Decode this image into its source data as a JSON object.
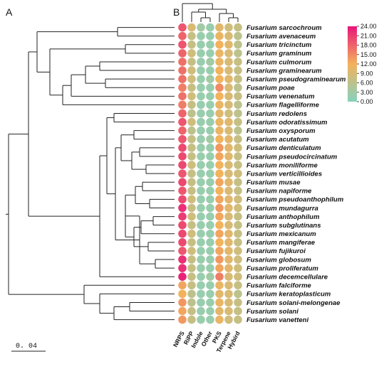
{
  "panels": {
    "a": "A",
    "b": "B"
  },
  "scale_bar_label": "0. 04",
  "colors": {
    "low": "#86d2bd",
    "mid": "#f3b25c",
    "high": "#e8157a"
  },
  "chart_data": {
    "type": "heatmap",
    "columns": [
      "NRPS",
      "RiPP",
      "Indole",
      "Other",
      "PKS",
      "Terpene",
      "Hybird"
    ],
    "rows": [
      "Fusarium sarcochroum",
      "Fusarium avenaceum",
      "Fusarium tricinctum",
      "Fusarium graminum",
      "Fusarium culmorum",
      "Fusarium graminearum",
      "Fusarium pseudograminearum",
      "Fusarium poae",
      "Fusarium venenatum",
      "Fusarium flagelliforme",
      "Fusarium redolens",
      "Fusarium odoratissimum",
      "Fusarium oxysporum",
      "Fusarium acutatum",
      "Fusarium denticulatum",
      "Fusarium pseudocircinatum",
      "Fusarium moniliforme",
      "Fusarium verticillioides",
      "Fusarium musae",
      "Fusarium napiforme",
      "Fusarium pseudoanthophilum",
      "Fusarium mundagurra",
      "Fusarium anthophilum",
      "Fusarium subglutinans",
      "Fusarium mexicanum",
      "Fusarium mangiferae",
      "Fusarium fujikuroi",
      "Fusarium globosum",
      "Fusarium proliferatum",
      "Fusarium decemcellulare",
      "Fusarium falciforme",
      "Fusarium keratoplasticum",
      "Fusarium solani-melongenae",
      "Fusarium solani",
      "Fusarium vanetteni"
    ],
    "values": [
      [
        19,
        9,
        3,
        2,
        10,
        8,
        7
      ],
      [
        18,
        7,
        2,
        2,
        11,
        9,
        6
      ],
      [
        19,
        7,
        2,
        2,
        12,
        10,
        6
      ],
      [
        18,
        8,
        2,
        2,
        11,
        9,
        6
      ],
      [
        17,
        7,
        2,
        3,
        11,
        9,
        7
      ],
      [
        17,
        8,
        2,
        2,
        12,
        9,
        7
      ],
      [
        17,
        8,
        2,
        3,
        12,
        10,
        7
      ],
      [
        16,
        7,
        2,
        2,
        15,
        9,
        6
      ],
      [
        17,
        8,
        2,
        2,
        12,
        9,
        7
      ],
      [
        16,
        7,
        2,
        2,
        11,
        9,
        6
      ],
      [
        18,
        6,
        2,
        2,
        10,
        8,
        6
      ],
      [
        19,
        8,
        2,
        2,
        11,
        10,
        7
      ],
      [
        18,
        6,
        2,
        2,
        11,
        9,
        6
      ],
      [
        19,
        7,
        2,
        3,
        12,
        10,
        7
      ],
      [
        20,
        7,
        2,
        2,
        14,
        10,
        8
      ],
      [
        20,
        7,
        2,
        2,
        13,
        10,
        7
      ],
      [
        20,
        8,
        2,
        2,
        12,
        9,
        7
      ],
      [
        19,
        7,
        2,
        2,
        12,
        9,
        8
      ],
      [
        20,
        7,
        2,
        2,
        13,
        10,
        7
      ],
      [
        19,
        7,
        2,
        2,
        12,
        9,
        7
      ],
      [
        20,
        8,
        2,
        2,
        13,
        10,
        8
      ],
      [
        22,
        7,
        2,
        2,
        14,
        10,
        8
      ],
      [
        21,
        8,
        2,
        2,
        13,
        9,
        7
      ],
      [
        20,
        7,
        2,
        2,
        12,
        9,
        7
      ],
      [
        20,
        8,
        2,
        2,
        13,
        10,
        7
      ],
      [
        20,
        7,
        2,
        2,
        12,
        10,
        7
      ],
      [
        19,
        8,
        2,
        2,
        13,
        10,
        8
      ],
      [
        22,
        7,
        2,
        2,
        14,
        10,
        8
      ],
      [
        22,
        7,
        2,
        2,
        13,
        10,
        8
      ],
      [
        23,
        7,
        2,
        3,
        16,
        9,
        8
      ],
      [
        13,
        7,
        2,
        2,
        11,
        9,
        7
      ],
      [
        12,
        6,
        2,
        2,
        10,
        9,
        6
      ],
      [
        14,
        6,
        2,
        2,
        11,
        9,
        7
      ],
      [
        13,
        7,
        2,
        2,
        10,
        9,
        7
      ],
      [
        14,
        7,
        2,
        2,
        11,
        8,
        7
      ]
    ],
    "colorbar": {
      "min": 0,
      "max": 24,
      "ticks": [
        "24.00",
        "21.00",
        "18.00",
        "15.00",
        "12.00",
        "9.00",
        "6.00",
        "3.00",
        "0.00"
      ]
    }
  }
}
